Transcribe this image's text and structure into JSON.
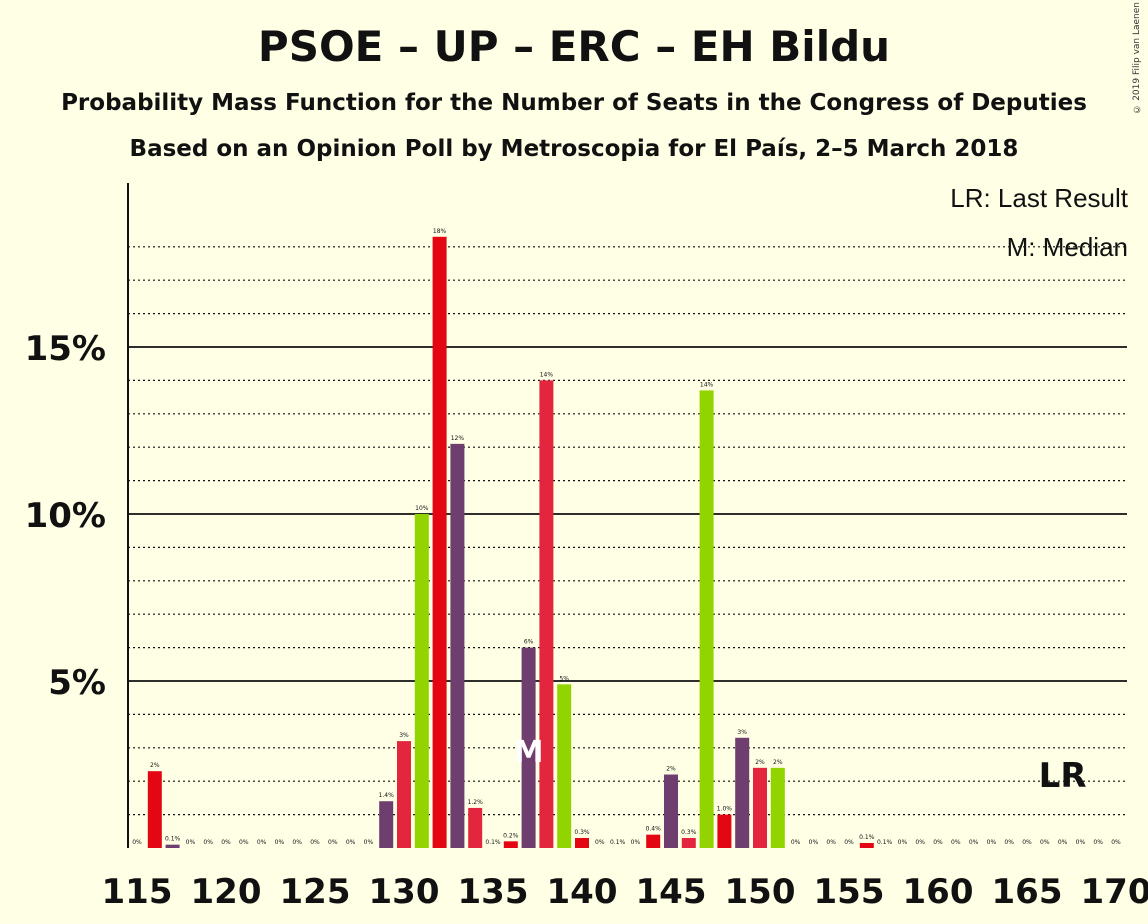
{
  "title": "PSOE – UP – ERC – EH Bildu",
  "subtitle": "Probability Mass Function for the Number of Seats in the Congress of Deputies",
  "subtitle2": "Based on an Opinion Poll by Metroscopia for El País, 2–5 March 2018",
  "copyright": "© 2019 Filip van Laenen",
  "legend": {
    "lr": "LR: Last Result",
    "m": "M: Median"
  },
  "markers": {
    "median_label": "M",
    "median_seat": 137,
    "last_result_label": "LR",
    "last_result_seat": 167
  },
  "colors": {
    "background": "#ffffe6",
    "bar_cycle": [
      "#e3263d",
      "#6e3e6e",
      "#e30613",
      "#92d400"
    ]
  },
  "chart_data": {
    "type": "bar",
    "title": "PSOE – UP – ERC – EH Bildu",
    "xlabel": "",
    "ylabel": "",
    "xlim": [
      115,
      170
    ],
    "ylim": [
      0,
      20
    ],
    "x_ticks": [
      115,
      120,
      125,
      130,
      135,
      140,
      145,
      150,
      155,
      160,
      165,
      170
    ],
    "y_ticks": [
      {
        "value": 5,
        "label": "5%"
      },
      {
        "value": 10,
        "label": "10%"
      },
      {
        "value": 15,
        "label": "15%"
      }
    ],
    "grid": true,
    "bars": [
      {
        "seat": 115,
        "value": 0.0,
        "label": "0%",
        "color": "#e3263d"
      },
      {
        "seat": 116,
        "value": 2.3,
        "label": "2%",
        "color": "#e30613"
      },
      {
        "seat": 117,
        "value": 0.1,
        "label": "0.1%",
        "color": "#6e3e6e"
      },
      {
        "seat": 118,
        "value": 0.0,
        "label": "0%",
        "color": "#e3263d"
      },
      {
        "seat": 119,
        "value": 0.0,
        "label": "0%",
        "color": "#e3263d"
      },
      {
        "seat": 120,
        "value": 0.0,
        "label": "0%",
        "color": "#e3263d"
      },
      {
        "seat": 121,
        "value": 0.0,
        "label": "0%",
        "color": "#e3263d"
      },
      {
        "seat": 122,
        "value": 0.0,
        "label": "0%",
        "color": "#e3263d"
      },
      {
        "seat": 123,
        "value": 0.0,
        "label": "0%",
        "color": "#e3263d"
      },
      {
        "seat": 124,
        "value": 0.0,
        "label": "0%",
        "color": "#e3263d"
      },
      {
        "seat": 125,
        "value": 0.0,
        "label": "0%",
        "color": "#e3263d"
      },
      {
        "seat": 126,
        "value": 0.0,
        "label": "0%",
        "color": "#e3263d"
      },
      {
        "seat": 127,
        "value": 0.0,
        "label": "0%",
        "color": "#e3263d"
      },
      {
        "seat": 128,
        "value": 0.0,
        "label": "0%",
        "color": "#e3263d"
      },
      {
        "seat": 129,
        "value": 1.4,
        "label": "1.4%",
        "color": "#6e3e6e"
      },
      {
        "seat": 130,
        "value": 3.2,
        "label": "3%",
        "color": "#e3263d"
      },
      {
        "seat": 131,
        "value": 10.0,
        "label": "10%",
        "color": "#92d400"
      },
      {
        "seat": 132,
        "value": 18.3,
        "label": "18%",
        "color": "#e30613"
      },
      {
        "seat": 133,
        "value": 12.1,
        "label": "12%",
        "color": "#6e3e6e"
      },
      {
        "seat": 134,
        "value": 1.2,
        "label": "1.2%",
        "color": "#e3263d"
      },
      {
        "seat": 135,
        "value": 0.0,
        "label": "0.1%",
        "color": "#92d400"
      },
      {
        "seat": 136,
        "value": 0.2,
        "label": "0.2%",
        "color": "#e30613"
      },
      {
        "seat": 137,
        "value": 6.0,
        "label": "6%",
        "color": "#6e3e6e"
      },
      {
        "seat": 138,
        "value": 14.0,
        "label": "14%",
        "color": "#e3263d"
      },
      {
        "seat": 139,
        "value": 4.9,
        "label": "5%",
        "color": "#92d400"
      },
      {
        "seat": 140,
        "value": 0.3,
        "label": "0.3%",
        "color": "#e30613"
      },
      {
        "seat": 141,
        "value": 0.0,
        "label": "0%",
        "color": "#6e3e6e"
      },
      {
        "seat": 142,
        "value": 0.0,
        "label": "0.1%",
        "color": "#e3263d"
      },
      {
        "seat": 143,
        "value": 0.0,
        "label": "0%",
        "color": "#92d400"
      },
      {
        "seat": 144,
        "value": 0.4,
        "label": "0.4%",
        "color": "#e30613"
      },
      {
        "seat": 145,
        "value": 2.2,
        "label": "2%",
        "color": "#6e3e6e"
      },
      {
        "seat": 146,
        "value": 0.3,
        "label": "0.3%",
        "color": "#e3263d"
      },
      {
        "seat": 147,
        "value": 13.7,
        "label": "14%",
        "color": "#92d400"
      },
      {
        "seat": 148,
        "value": 1.0,
        "label": "1.0%",
        "color": "#e30613"
      },
      {
        "seat": 149,
        "value": 3.3,
        "label": "3%",
        "color": "#6e3e6e"
      },
      {
        "seat": 150,
        "value": 2.4,
        "label": "2%",
        "color": "#e3263d"
      },
      {
        "seat": 151,
        "value": 2.4,
        "label": "2%",
        "color": "#92d400"
      },
      {
        "seat": 152,
        "value": 0.0,
        "label": "0%",
        "color": "#e30613"
      },
      {
        "seat": 153,
        "value": 0.0,
        "label": "0%",
        "color": "#6e3e6e"
      },
      {
        "seat": 154,
        "value": 0.0,
        "label": "0%",
        "color": "#e3263d"
      },
      {
        "seat": 155,
        "value": 0.0,
        "label": "0%",
        "color": "#92d400"
      },
      {
        "seat": 156,
        "value": 0.15,
        "label": "0.1%",
        "color": "#e30613"
      },
      {
        "seat": 157,
        "value": 0.0,
        "label": "0.1%",
        "color": "#6e3e6e"
      },
      {
        "seat": 158,
        "value": 0.0,
        "label": "0%",
        "color": "#e3263d"
      },
      {
        "seat": 159,
        "value": 0.0,
        "label": "0%",
        "color": "#92d400"
      },
      {
        "seat": 160,
        "value": 0.0,
        "label": "0%",
        "color": "#e30613"
      },
      {
        "seat": 161,
        "value": 0.0,
        "label": "0%",
        "color": "#6e3e6e"
      },
      {
        "seat": 162,
        "value": 0.0,
        "label": "0%",
        "color": "#e3263d"
      },
      {
        "seat": 163,
        "value": 0.0,
        "label": "0%",
        "color": "#92d400"
      },
      {
        "seat": 164,
        "value": 0.0,
        "label": "0%",
        "color": "#e30613"
      },
      {
        "seat": 165,
        "value": 0.0,
        "label": "0%",
        "color": "#6e3e6e"
      },
      {
        "seat": 166,
        "value": 0.0,
        "label": "0%",
        "color": "#e3263d"
      },
      {
        "seat": 167,
        "value": 0.0,
        "label": "0%",
        "color": "#92d400"
      },
      {
        "seat": 168,
        "value": 0.0,
        "label": "0%",
        "color": "#e30613"
      },
      {
        "seat": 169,
        "value": 0.0,
        "label": "0%",
        "color": "#6e3e6e"
      },
      {
        "seat": 170,
        "value": 0.0,
        "label": "0%",
        "color": "#e3263d"
      }
    ]
  }
}
